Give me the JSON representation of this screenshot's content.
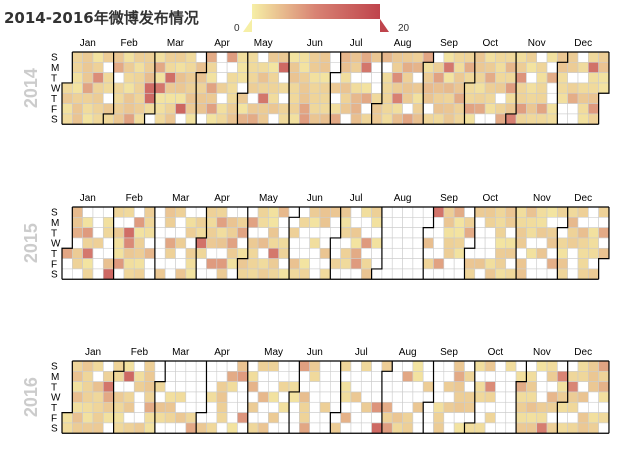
{
  "chart_data": {
    "type": "heatmap",
    "title": "2014-2016年微博发布情况",
    "visual_map": {
      "min": 0,
      "max": 20,
      "min_label": "0",
      "max_label": "20",
      "colors": [
        "#f6efa6",
        "#d88273",
        "#bf444c"
      ]
    },
    "empty_color": "#ffffff",
    "month_labels": [
      "Jan",
      "Feb",
      "Mar",
      "Apr",
      "May",
      "Jun",
      "Jul",
      "Aug",
      "Sep",
      "Oct",
      "Nov",
      "Dec"
    ],
    "day_labels": [
      "S",
      "M",
      "T",
      "W",
      "T",
      "F",
      "S"
    ],
    "calendars": [
      {
        "year": "2014",
        "fill_ratio": 0.88,
        "seed": 11
      },
      {
        "year": "2015",
        "fill_ratio": 0.62,
        "seed": 29,
        "empty_month": 7
      },
      {
        "year": "2016",
        "fill_ratio": 0.36,
        "seed": 53,
        "heavy_months": [
          0,
          1,
          10,
          11
        ]
      }
    ],
    "legend_placement": "top-center"
  }
}
